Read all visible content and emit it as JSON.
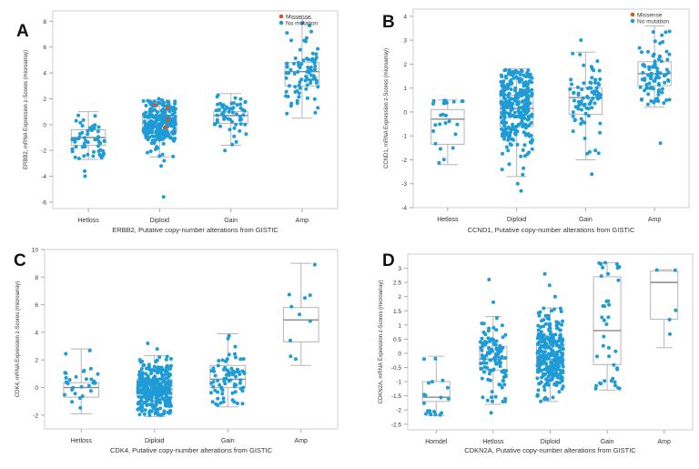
{
  "colors": {
    "point": "#1f9bd6",
    "missense": "#d9541e",
    "box": "#b5b5b5",
    "median": "#8a8a8a",
    "axis": "#cfcfcf",
    "text": "#333333"
  },
  "chart_data": [
    {
      "panel": "A",
      "type": "box",
      "xlabel": "ERBB2, Putative copy-number alterations from GISTIC",
      "ylabel": "ERBB2, mRNA Expression z-Scores (microarray)",
      "ylim": [
        -6.5,
        8.8
      ],
      "yticks": [
        -6,
        -4,
        -2,
        0,
        2,
        4,
        6,
        8
      ],
      "categories": [
        "Hetloss",
        "Diploid",
        "Gain",
        "Amp"
      ],
      "legend": [
        "Missense",
        "No mutation"
      ],
      "legend_position": "top-right",
      "boxes": [
        {
          "category": "Hetloss",
          "min": -2.7,
          "q1": -1.6,
          "median": -1.0,
          "q3": -0.4,
          "max": 1.0,
          "n": 55,
          "outliers": [
            -3.6,
            -4.0
          ]
        },
        {
          "category": "Diploid",
          "min": -2.5,
          "q1": -0.5,
          "median": 0.1,
          "q3": 0.7,
          "max": 1.9,
          "n": 270,
          "outliers": [
            -2.8,
            -3.2,
            -5.6,
            2.0
          ]
        },
        {
          "category": "Gain",
          "min": -1.6,
          "q1": 0.1,
          "median": 0.7,
          "q3": 1.0,
          "max": 2.4,
          "n": 60,
          "outliers": [
            -2.0
          ]
        },
        {
          "category": "Amp",
          "min": 0.5,
          "q1": 3.0,
          "median": 4.1,
          "q3": 4.8,
          "max": 8.2,
          "n": 85,
          "outliers": []
        }
      ],
      "missense": [
        {
          "category": "Diploid",
          "values": [
            1.3,
            0.4,
            -0.2,
            1.5
          ]
        }
      ]
    },
    {
      "panel": "B",
      "type": "box",
      "xlabel": "CCND1, Putative copy-number alterations from GISTIC",
      "ylabel": "CCND1, mRNA Expression z-Scores (microarray)",
      "ylim": [
        -4,
        4.3
      ],
      "yticks": [
        -4,
        -3,
        -2,
        -1,
        0,
        1,
        2,
        3,
        4
      ],
      "categories": [
        "Hetloss",
        "Diploid",
        "Gain",
        "Amp"
      ],
      "legend": [
        "Missense",
        "No mutation"
      ],
      "legend_position": "top-right",
      "boxes": [
        {
          "category": "Hetloss",
          "min": -2.2,
          "q1": -1.35,
          "median": -0.3,
          "q3": 0.1,
          "max": 0.5,
          "n": 25,
          "outliers": []
        },
        {
          "category": "Diploid",
          "min": -2.7,
          "q1": -0.6,
          "median": 0.15,
          "q3": 0.7,
          "max": 1.8,
          "n": 300,
          "outliers": [
            -3.0,
            -3.3
          ]
        },
        {
          "category": "Gain",
          "min": -2.0,
          "q1": -0.1,
          "median": 0.6,
          "q3": 1.0,
          "max": 2.5,
          "n": 80,
          "outliers": [
            -2.6,
            3.0
          ]
        },
        {
          "category": "Amp",
          "min": 0.2,
          "q1": 1.1,
          "median": 1.6,
          "q3": 2.1,
          "max": 3.6,
          "n": 90,
          "outliers": [
            -1.3
          ]
        }
      ],
      "missense": []
    },
    {
      "panel": "C",
      "type": "box",
      "xlabel": "CDK4, Putative copy-number alterations from GISTIC",
      "ylabel": "CDK4, mRNA Expression z-Scores (microarray)",
      "ylim": [
        -3,
        10
      ],
      "yticks": [
        -2,
        0,
        2,
        4,
        6,
        8,
        10
      ],
      "categories": [
        "Hetloss",
        "Diploid",
        "Gain",
        "Amp"
      ],
      "legend": [],
      "legend_position": "",
      "boxes": [
        {
          "category": "Hetloss",
          "min": -1.9,
          "q1": -0.7,
          "median": 0.0,
          "q3": 0.35,
          "max": 2.8,
          "n": 30,
          "outliers": []
        },
        {
          "category": "Diploid",
          "min": -2.1,
          "q1": -0.7,
          "median": -0.1,
          "q3": 0.6,
          "max": 2.3,
          "n": 320,
          "outliers": [
            2.8,
            3.2
          ]
        },
        {
          "category": "Gain",
          "min": -1.4,
          "q1": 0.0,
          "median": 0.6,
          "q3": 1.6,
          "max": 3.9,
          "n": 75,
          "outliers": []
        },
        {
          "category": "Amp",
          "min": 1.6,
          "q1": 3.3,
          "median": 4.9,
          "q3": 5.8,
          "max": 9.0,
          "n": 10,
          "outliers": []
        }
      ],
      "missense": []
    },
    {
      "panel": "D",
      "type": "box",
      "xlabel": "CDKN2A, Putative copy-number alterations from GISTIC",
      "ylabel": "CDKN2A, mRNA Expression z-Scores (microarray)",
      "ylim": [
        -2.7,
        3.5
      ],
      "yticks": [
        -2.5,
        -2,
        -1.5,
        -1,
        -0.5,
        0,
        0.5,
        1,
        1.5,
        2,
        2.5,
        3
      ],
      "categories": [
        "Homdel",
        "Hetloss",
        "Diploid",
        "Gain",
        "Amp"
      ],
      "legend": [],
      "legend_position": "",
      "boxes": [
        {
          "category": "Homdel",
          "min": -2.2,
          "q1": -1.7,
          "median": -1.55,
          "q3": -1.0,
          "max": -0.1,
          "n": 20,
          "outliers": []
        },
        {
          "category": "Hetloss",
          "min": -1.8,
          "q1": -0.6,
          "median": -0.2,
          "q3": 0.25,
          "max": 1.3,
          "n": 110,
          "outliers": [
            1.8,
            2.6,
            -2.1
          ]
        },
        {
          "category": "Diploid",
          "min": -1.7,
          "q1": -0.7,
          "median": -0.2,
          "q3": 0.3,
          "max": 1.6,
          "n": 280,
          "outliers": [
            2.0,
            2.4,
            2.8
          ]
        },
        {
          "category": "Gain",
          "min": -1.3,
          "q1": -0.4,
          "median": 0.8,
          "q3": 2.7,
          "max": 3.2,
          "n": 40,
          "outliers": []
        },
        {
          "category": "Amp",
          "min": 0.2,
          "q1": 1.2,
          "median": 2.5,
          "q3": 2.9,
          "max": 2.95,
          "n": 5,
          "outliers": []
        }
      ],
      "missense": []
    }
  ]
}
